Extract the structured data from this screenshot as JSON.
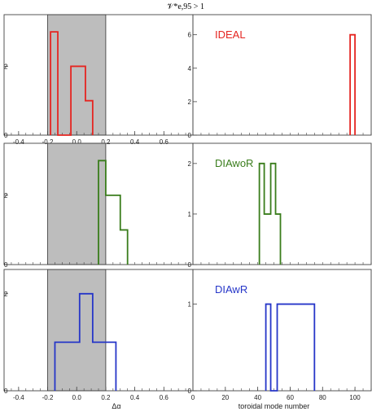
{
  "figure_title": "𝒱*e,95 > 1",
  "colors": {
    "IDEAL": "#e52521",
    "DIAwoR": "#3a7d1c",
    "DIAwR": "#2636c8",
    "shade": "#bdbdbd"
  },
  "chart_data": [
    {
      "type": "step",
      "panel": "left-top",
      "xlim": [
        -0.5,
        0.8
      ],
      "ylim": [
        0,
        3.5
      ],
      "xticks": [
        -0.4,
        -0.2,
        0.0,
        0.2,
        0.4,
        0.6
      ],
      "yticks": [
        0,
        2
      ],
      "shaded_region": [
        -0.2,
        0.2
      ],
      "series": [
        {
          "color_key": "IDEAL",
          "x": [
            -0.18,
            -0.18,
            -0.13,
            -0.13,
            -0.04,
            -0.04,
            0.06,
            0.06,
            0.11,
            0.11
          ],
          "y": [
            0,
            3,
            3,
            0,
            0,
            2,
            2,
            1,
            1,
            0
          ]
        }
      ]
    },
    {
      "type": "step",
      "panel": "right-top",
      "title": "IDEAL",
      "xlim": [
        0,
        110
      ],
      "ylim": [
        0,
        7.2
      ],
      "yticks": [
        0,
        2,
        4,
        6
      ],
      "series": [
        {
          "color_key": "IDEAL",
          "x": [
            97,
            97,
            100,
            100
          ],
          "y": [
            0,
            6,
            6,
            0
          ]
        }
      ]
    },
    {
      "type": "step",
      "panel": "left-middle",
      "xlim": [
        -0.5,
        0.8
      ],
      "ylim": [
        0,
        3.5
      ],
      "yticks": [
        0,
        2
      ],
      "shaded_region": [
        -0.2,
        0.2
      ],
      "series": [
        {
          "color_key": "DIAwoR",
          "x": [
            0.15,
            0.15,
            0.2,
            0.2,
            0.3,
            0.3,
            0.35,
            0.35
          ],
          "y": [
            0,
            3,
            3,
            2,
            2,
            1,
            1,
            0
          ]
        }
      ]
    },
    {
      "type": "step",
      "panel": "right-middle",
      "title": "DIAwoR",
      "xlim": [
        0,
        110
      ],
      "ylim": [
        0,
        2.4
      ],
      "yticks": [
        0,
        1,
        2
      ],
      "series": [
        {
          "color_key": "DIAwoR",
          "x": [
            41,
            41,
            44,
            44,
            48,
            48,
            51,
            51,
            54,
            54
          ],
          "y": [
            0,
            2,
            2,
            1,
            1,
            2,
            2,
            1,
            1,
            0
          ]
        }
      ]
    },
    {
      "type": "step",
      "panel": "left-bottom",
      "xlim": [
        -0.5,
        0.8
      ],
      "ylim": [
        0,
        2.5
      ],
      "xticks": [
        -0.4,
        -0.2,
        0.0,
        0.2,
        0.4,
        0.6
      ],
      "yticks": [
        0,
        2
      ],
      "shaded_region": [
        -0.2,
        0.2
      ],
      "xlabel": "Δα",
      "series": [
        {
          "color_key": "DIAwR",
          "x": [
            -0.15,
            -0.15,
            0.02,
            0.02,
            0.11,
            0.11,
            0.27,
            0.27
          ],
          "y": [
            0,
            1,
            1,
            2,
            2,
            1,
            1,
            0
          ]
        }
      ]
    },
    {
      "type": "step",
      "panel": "right-bottom",
      "title": "DIAwR",
      "xlim": [
        0,
        110
      ],
      "ylim": [
        0,
        1.4
      ],
      "xticks": [
        0,
        20,
        40,
        60,
        80,
        100
      ],
      "yticks": [
        0,
        1
      ],
      "xlabel": "toroidal mode number",
      "series": [
        {
          "color_key": "DIAwR",
          "x": [
            45,
            45,
            48,
            48,
            52,
            52,
            75,
            75
          ],
          "y": [
            0,
            1,
            1,
            0,
            0,
            1,
            1,
            0
          ]
        }
      ]
    }
  ]
}
